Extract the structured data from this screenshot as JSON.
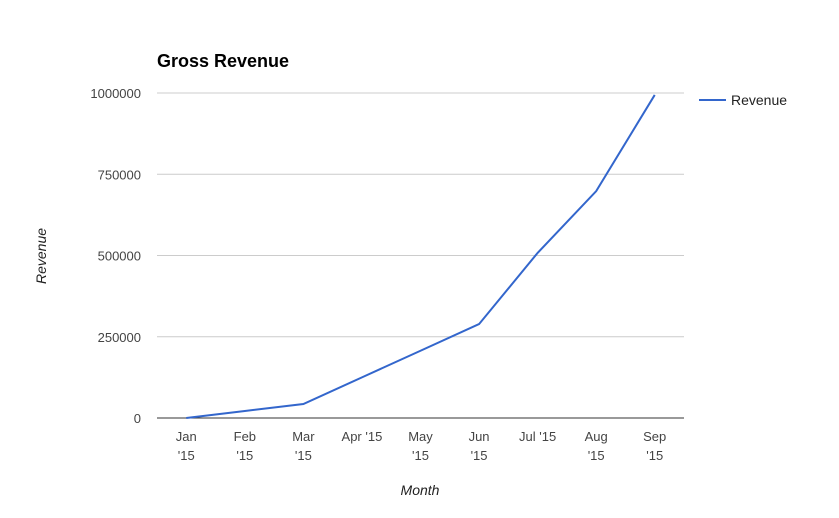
{
  "chart_data": {
    "type": "line",
    "title": "Gross Revenue",
    "xlabel": "Month",
    "ylabel": "Revenue",
    "categories": [
      [
        "Jan",
        "'15"
      ],
      [
        "Feb",
        "'15"
      ],
      [
        "Mar",
        "'15"
      ],
      [
        "Apr '15"
      ],
      [
        "May",
        "'15"
      ],
      [
        "Jun",
        "'15"
      ],
      [
        "Jul '15"
      ],
      [
        "Aug",
        "'15"
      ],
      [
        "Sep",
        "'15"
      ]
    ],
    "series": [
      {
        "name": "Revenue",
        "color": "#3366cc",
        "values": [
          0,
          21500,
          43000,
          125000,
          207000,
          289000,
          508000,
          698000,
          994000
        ]
      }
    ],
    "ylim": [
      0,
      1000000
    ],
    "yticks": [
      0,
      250000,
      500000,
      750000,
      1000000
    ],
    "ytick_labels": [
      "0",
      "250000",
      "500000",
      "750000",
      "1000000"
    ],
    "grid": true,
    "legend_position": "right"
  }
}
